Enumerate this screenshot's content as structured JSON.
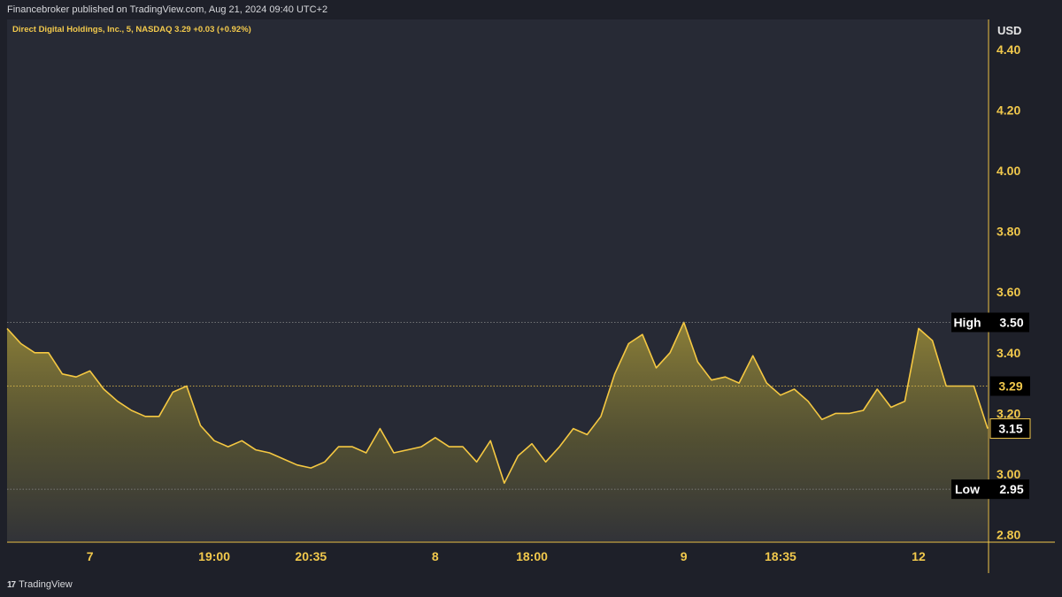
{
  "header": {
    "published_line": "Financebroker published on TradingView.com, Aug 21, 2024 09:40 UTC+2"
  },
  "footer": {
    "brand": "TradingView",
    "logo_glyph": "17"
  },
  "colors": {
    "background": "#1e2029",
    "panel": "#272a35",
    "accent": "#f2c94c",
    "line": "#f5c842",
    "label_dark": "#000000",
    "text_light": "#d7d8dc"
  },
  "chart_data": {
    "type": "area",
    "title": "Direct Digital Holdings, Inc., 5, NASDAQ",
    "title_quote": "3.29",
    "title_change": "+0.03 (+0.92%)",
    "currency": "USD",
    "ylim": [
      2.76,
      4.45
    ],
    "y_ticks": [
      "4.40",
      "4.20",
      "4.00",
      "3.80",
      "3.60",
      "3.40",
      "3.20",
      "3.00",
      "2.80"
    ],
    "x_tick_labels": [
      "7",
      "19:00",
      "20:35",
      "8",
      "18:00",
      "9",
      "18:35",
      "12"
    ],
    "x_tick_index": [
      6,
      15,
      22,
      31,
      38,
      49,
      56,
      66
    ],
    "values": [
      3.48,
      3.43,
      3.4,
      3.4,
      3.33,
      3.32,
      3.34,
      3.28,
      3.24,
      3.21,
      3.19,
      3.19,
      3.27,
      3.29,
      3.16,
      3.11,
      3.09,
      3.11,
      3.08,
      3.07,
      3.05,
      3.03,
      3.02,
      3.04,
      3.09,
      3.09,
      3.07,
      3.15,
      3.07,
      3.08,
      3.09,
      3.12,
      3.09,
      3.09,
      3.04,
      3.11,
      2.97,
      3.06,
      3.1,
      3.04,
      3.09,
      3.15,
      3.13,
      3.19,
      3.33,
      3.43,
      3.46,
      3.35,
      3.4,
      3.5,
      3.37,
      3.31,
      3.32,
      3.3,
      3.39,
      3.3,
      3.26,
      3.28,
      3.24,
      3.18,
      3.2,
      3.2,
      3.21,
      3.28,
      3.22,
      3.24,
      3.48,
      3.44,
      3.29,
      3.29,
      3.29,
      3.15
    ],
    "levels": [
      {
        "name": "High",
        "value": 3.5,
        "label": "3.50"
      },
      {
        "name": "Low",
        "value": 2.95,
        "label": "2.95"
      }
    ],
    "current": {
      "value": 3.29,
      "label": "3.29"
    },
    "last": {
      "value": 3.15,
      "label": "3.15"
    },
    "grid": false,
    "legend": "none"
  }
}
